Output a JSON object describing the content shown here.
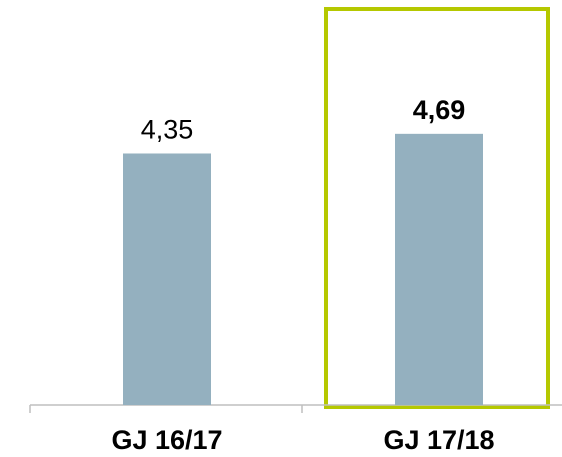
{
  "chart_data": {
    "type": "bar",
    "categories": [
      "GJ 16/17",
      "GJ 17/18"
    ],
    "values": [
      4.35,
      4.69
    ],
    "data_labels": [
      "4,35",
      "4,69"
    ],
    "bold_labels": [
      false,
      true
    ],
    "highlighted_category": "GJ 17/18",
    "title": "",
    "xlabel": "",
    "ylabel": "",
    "ylim": [
      0,
      5.5
    ],
    "grid": false,
    "legend": "none",
    "colors": {
      "bar": "#94b0bf",
      "highlight_border": "#b5c800",
      "axis": "#bfbfbf",
      "text": "#000000"
    }
  }
}
